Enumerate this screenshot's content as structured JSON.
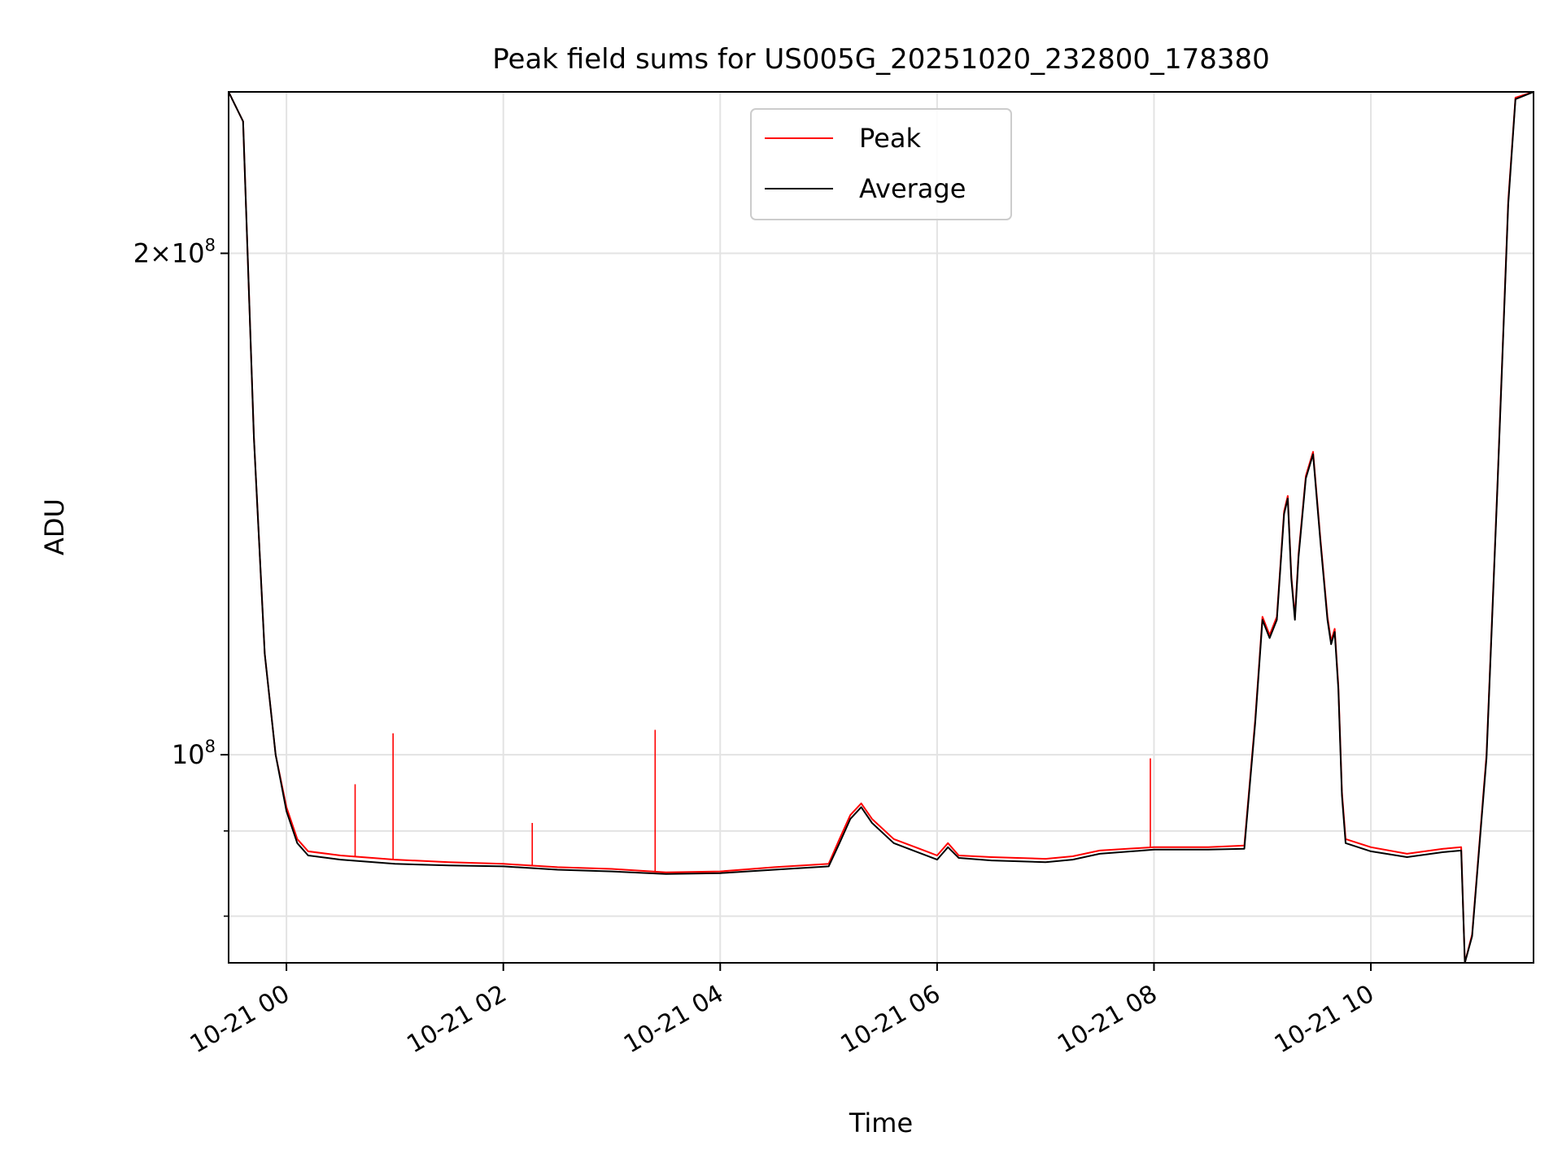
{
  "chart_data": {
    "type": "line",
    "title": "Peak field sums for US005G_20251020_232800_178380",
    "xlabel": "Time",
    "ylabel": "ADU",
    "x_axis": {
      "kind": "datetime",
      "range": [
        "2025-10-20 23:28",
        "2025-10-21 11:30"
      ],
      "ticks": [
        {
          "at": "2025-10-21 00:00",
          "label": "10-21 00"
        },
        {
          "at": "2025-10-21 02:00",
          "label": "10-21 02"
        },
        {
          "at": "2025-10-21 04:00",
          "label": "10-21 04"
        },
        {
          "at": "2025-10-21 06:00",
          "label": "10-21 06"
        },
        {
          "at": "2025-10-21 08:00",
          "label": "10-21 08"
        },
        {
          "at": "2025-10-21 10:00",
          "label": "10-21 10"
        }
      ]
    },
    "y_axis": {
      "scale": "log",
      "range": [
        75000000,
        250000000
      ],
      "major_ticks": [
        {
          "value": 100000000,
          "label": "10^8"
        },
        {
          "value": 200000000,
          "label": "2×10^8"
        }
      ],
      "minor_ticks": [
        80000000,
        90000000
      ]
    },
    "grid": true,
    "legend": {
      "position": "top-center",
      "entries": [
        "Peak",
        "Average"
      ]
    },
    "series": [
      {
        "name": "Peak",
        "color": "#ff0000",
        "points": [
          [
            "2025-10-20 23:28",
            250000000
          ],
          [
            "2025-10-20 23:36",
            240000000
          ],
          [
            "2025-10-20 23:42",
            155000000
          ],
          [
            "2025-10-20 23:48",
            115000000
          ],
          [
            "2025-10-20 23:54",
            100000000
          ],
          [
            "2025-10-21 00:00",
            93000000
          ],
          [
            "2025-10-21 00:06",
            89000000
          ],
          [
            "2025-10-21 00:12",
            87500000
          ],
          [
            "2025-10-21 00:30",
            87000000
          ],
          [
            "2025-10-21 01:00",
            86500000
          ],
          [
            "2025-10-21 01:30",
            86200000
          ],
          [
            "2025-10-21 02:00",
            86000000
          ],
          [
            "2025-10-21 02:30",
            85600000
          ],
          [
            "2025-10-21 03:00",
            85400000
          ],
          [
            "2025-10-21 03:30",
            85000000
          ],
          [
            "2025-10-21 04:00",
            85100000
          ],
          [
            "2025-10-21 04:30",
            85600000
          ],
          [
            "2025-10-21 05:00",
            86000000
          ],
          [
            "2025-10-21 05:06",
            89000000
          ],
          [
            "2025-10-21 05:12",
            92000000
          ],
          [
            "2025-10-21 05:18",
            93500000
          ],
          [
            "2025-10-21 05:24",
            91500000
          ],
          [
            "2025-10-21 05:36",
            89000000
          ],
          [
            "2025-10-21 05:48",
            88000000
          ],
          [
            "2025-10-21 06:00",
            87000000
          ],
          [
            "2025-10-21 06:06",
            88500000
          ],
          [
            "2025-10-21 06:12",
            87000000
          ],
          [
            "2025-10-21 06:30",
            86800000
          ],
          [
            "2025-10-21 07:00",
            86600000
          ],
          [
            "2025-10-21 07:15",
            86900000
          ],
          [
            "2025-10-21 07:30",
            87600000
          ],
          [
            "2025-10-21 08:00",
            88000000
          ],
          [
            "2025-10-21 08:30",
            88000000
          ],
          [
            "2025-10-21 08:50",
            88200000
          ],
          [
            "2025-10-21 08:56",
            105000000
          ],
          [
            "2025-10-21 09:00",
            121000000
          ],
          [
            "2025-10-21 09:04",
            118000000
          ],
          [
            "2025-10-21 09:08",
            121000000
          ],
          [
            "2025-10-21 09:12",
            140000000
          ],
          [
            "2025-10-21 09:14",
            143000000
          ],
          [
            "2025-10-21 09:16",
            128000000
          ],
          [
            "2025-10-21 09:18",
            121000000
          ],
          [
            "2025-10-21 09:20",
            132000000
          ],
          [
            "2025-10-21 09:24",
            147000000
          ],
          [
            "2025-10-21 09:28",
            152000000
          ],
          [
            "2025-10-21 09:32",
            135000000
          ],
          [
            "2025-10-21 09:36",
            121000000
          ],
          [
            "2025-10-21 09:38",
            117000000
          ],
          [
            "2025-10-21 09:40",
            119000000
          ],
          [
            "2025-10-21 09:42",
            110000000
          ],
          [
            "2025-10-21 09:44",
            95000000
          ],
          [
            "2025-10-21 09:46",
            89000000
          ],
          [
            "2025-10-21 10:00",
            88000000
          ],
          [
            "2025-10-21 10:20",
            87200000
          ],
          [
            "2025-10-21 10:40",
            87800000
          ],
          [
            "2025-10-21 10:50",
            88000000
          ],
          [
            "2025-10-21 10:52",
            75000000
          ],
          [
            "2025-10-21 10:56",
            78000000
          ],
          [
            "2025-10-21 11:04",
            100000000
          ],
          [
            "2025-10-21 11:10",
            145000000
          ],
          [
            "2025-10-21 11:16",
            215000000
          ],
          [
            "2025-10-21 11:20",
            248000000
          ],
          [
            "2025-10-21 11:30",
            250000000
          ]
        ],
        "spikes": [
          [
            "2025-10-21 00:38",
            96000000
          ],
          [
            "2025-10-21 00:59",
            103000000
          ],
          [
            "2025-10-21 02:16",
            91000000
          ],
          [
            "2025-10-21 03:24",
            103500000
          ],
          [
            "2025-10-21 07:58",
            99500000
          ]
        ]
      },
      {
        "name": "Average",
        "color": "#000000",
        "points": [
          [
            "2025-10-20 23:28",
            250000000
          ],
          [
            "2025-10-20 23:36",
            240000000
          ],
          [
            "2025-10-20 23:42",
            155000000
          ],
          [
            "2025-10-20 23:48",
            115000000
          ],
          [
            "2025-10-20 23:54",
            100000000
          ],
          [
            "2025-10-21 00:00",
            92500000
          ],
          [
            "2025-10-21 00:06",
            88500000
          ],
          [
            "2025-10-21 00:12",
            87000000
          ],
          [
            "2025-10-21 00:30",
            86500000
          ],
          [
            "2025-10-21 01:00",
            86000000
          ],
          [
            "2025-10-21 01:30",
            85800000
          ],
          [
            "2025-10-21 02:00",
            85700000
          ],
          [
            "2025-10-21 02:30",
            85300000
          ],
          [
            "2025-10-21 03:00",
            85100000
          ],
          [
            "2025-10-21 03:30",
            84800000
          ],
          [
            "2025-10-21 04:00",
            84900000
          ],
          [
            "2025-10-21 04:30",
            85300000
          ],
          [
            "2025-10-21 05:00",
            85700000
          ],
          [
            "2025-10-21 05:06",
            88500000
          ],
          [
            "2025-10-21 05:12",
            91500000
          ],
          [
            "2025-10-21 05:18",
            93000000
          ],
          [
            "2025-10-21 05:24",
            91000000
          ],
          [
            "2025-10-21 05:36",
            88500000
          ],
          [
            "2025-10-21 05:48",
            87500000
          ],
          [
            "2025-10-21 06:00",
            86500000
          ],
          [
            "2025-10-21 06:06",
            88000000
          ],
          [
            "2025-10-21 06:12",
            86700000
          ],
          [
            "2025-10-21 06:30",
            86400000
          ],
          [
            "2025-10-21 07:00",
            86200000
          ],
          [
            "2025-10-21 07:15",
            86500000
          ],
          [
            "2025-10-21 07:30",
            87200000
          ],
          [
            "2025-10-21 08:00",
            87700000
          ],
          [
            "2025-10-21 08:30",
            87700000
          ],
          [
            "2025-10-21 08:50",
            87800000
          ],
          [
            "2025-10-21 08:56",
            104500000
          ],
          [
            "2025-10-21 09:00",
            120500000
          ],
          [
            "2025-10-21 09:04",
            117500000
          ],
          [
            "2025-10-21 09:08",
            120500000
          ],
          [
            "2025-10-21 09:12",
            139500000
          ],
          [
            "2025-10-21 09:14",
            142500000
          ],
          [
            "2025-10-21 09:16",
            127500000
          ],
          [
            "2025-10-21 09:18",
            120500000
          ],
          [
            "2025-10-21 09:20",
            131500000
          ],
          [
            "2025-10-21 09:24",
            146500000
          ],
          [
            "2025-10-21 09:28",
            151500000
          ],
          [
            "2025-10-21 09:32",
            134500000
          ],
          [
            "2025-10-21 09:36",
            120500000
          ],
          [
            "2025-10-21 09:38",
            116500000
          ],
          [
            "2025-10-21 09:40",
            118500000
          ],
          [
            "2025-10-21 09:42",
            109500000
          ],
          [
            "2025-10-21 09:44",
            94500000
          ],
          [
            "2025-10-21 09:46",
            88500000
          ],
          [
            "2025-10-21 10:00",
            87500000
          ],
          [
            "2025-10-21 10:20",
            86800000
          ],
          [
            "2025-10-21 10:40",
            87400000
          ],
          [
            "2025-10-21 10:50",
            87600000
          ],
          [
            "2025-10-21 10:52",
            75000000
          ],
          [
            "2025-10-21 10:56",
            77800000
          ],
          [
            "2025-10-21 11:04",
            99500000
          ],
          [
            "2025-10-21 11:10",
            144500000
          ],
          [
            "2025-10-21 11:16",
            214000000
          ],
          [
            "2025-10-21 11:20",
            247500000
          ],
          [
            "2025-10-21 11:30",
            250000000
          ]
        ]
      }
    ]
  }
}
